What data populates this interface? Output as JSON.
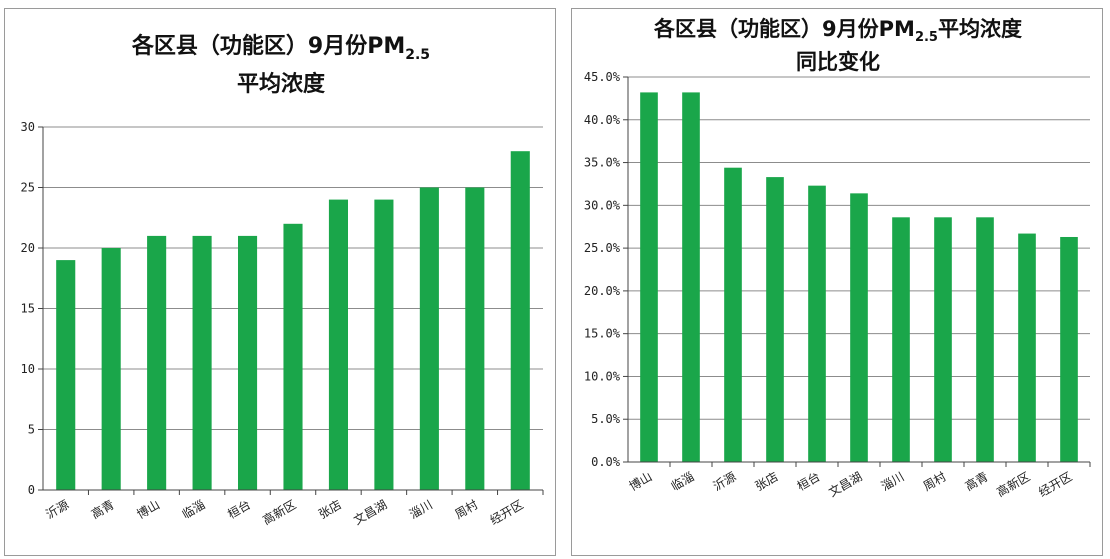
{
  "chart_data": [
    {
      "type": "bar",
      "title_main": "各区县（功能区）9月份PM",
      "title_sub": "2.5",
      "title_line2": "平均浓度",
      "categories": [
        "沂源",
        "高青",
        "博山",
        "临淄",
        "桓台",
        "高新区",
        "张店",
        "文昌湖",
        "淄川",
        "周村",
        "经开区"
      ],
      "values": [
        19,
        20,
        21,
        21,
        21,
        22,
        24,
        24,
        25,
        25,
        28
      ],
      "ylim": [
        0,
        30
      ],
      "yticks": [
        "0",
        "5",
        "10",
        "15",
        "20",
        "25",
        "30"
      ],
      "grid": true,
      "bar_color": "#1aa64a"
    },
    {
      "type": "bar",
      "title_main": "各区县（功能区）9月份PM",
      "title_sub": "2.5",
      "title_after": "平均浓度",
      "title_line2": "同比变化",
      "categories": [
        "博山",
        "临淄",
        "沂源",
        "张店",
        "桓台",
        "文昌湖",
        "淄川",
        "周村",
        "高青",
        "高新区",
        "经开区"
      ],
      "values": [
        43.2,
        43.2,
        34.4,
        33.3,
        32.3,
        31.4,
        28.6,
        28.6,
        28.6,
        26.7,
        26.3
      ],
      "ylim": [
        0,
        45
      ],
      "yticks": [
        "0.0%",
        "5.0%",
        "10.0%",
        "15.0%",
        "20.0%",
        "25.0%",
        "30.0%",
        "35.0%",
        "40.0%",
        "45.0%"
      ],
      "grid": true,
      "bar_color": "#1aa64a"
    }
  ]
}
